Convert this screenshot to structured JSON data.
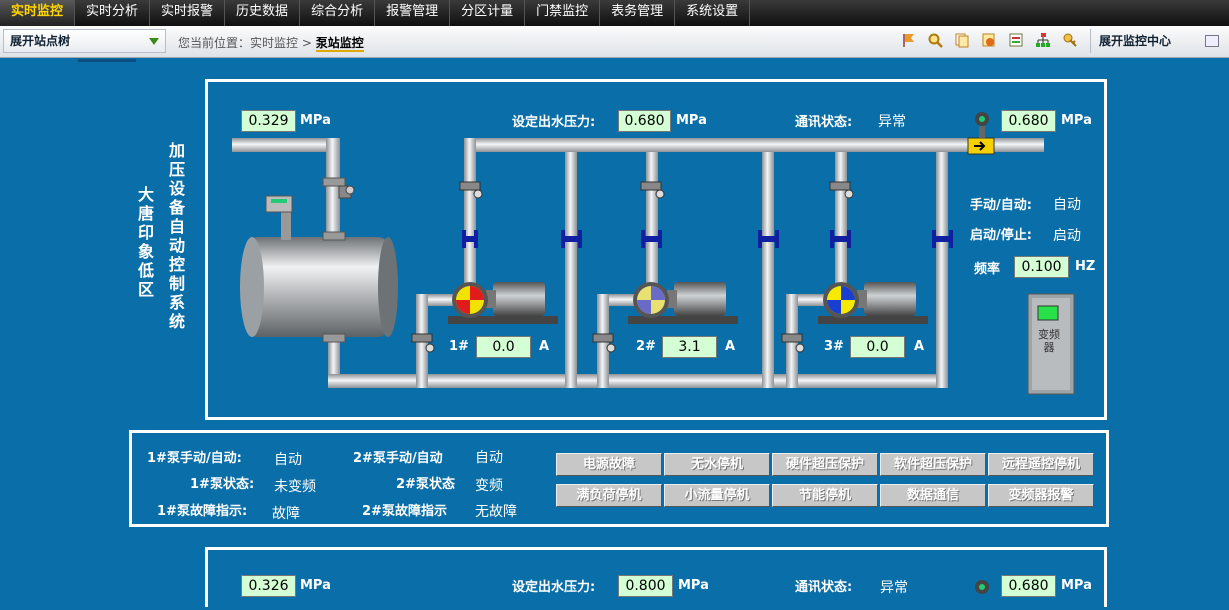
{
  "nav": {
    "items": [
      "实时监控",
      "实时分析",
      "实时报警",
      "历史数据",
      "综合分析",
      "报警管理",
      "分区计量",
      "门禁监控",
      "表务管理",
      "系统设置"
    ]
  },
  "toolbar": {
    "tree_label": "展开站点树",
    "breadcrumb_prefix": "您当前位置：实时监控 >",
    "breadcrumb_current": "泵站监控",
    "right_label": "展开监控中心",
    "icons": [
      "flag-icon",
      "search-icon",
      "copy-icon",
      "refresh-icon",
      "report-icon",
      "network-icon",
      "key-icon"
    ]
  },
  "station1": {
    "site_name": "大唐印象低区",
    "system_title": "加压设备自动控制系统",
    "inlet_pressure": "0.329",
    "unit_mpa": "MPa",
    "setpoint_label": "设定出水压力:",
    "setpoint": "0.680",
    "comm_label": "通讯状态:",
    "comm_value": "异常",
    "outlet_pressure": "0.680",
    "mode_label": "手动/自动:",
    "mode_value": "自动",
    "run_label": "启动/停止:",
    "run_value": "启动",
    "freq_label": "频率",
    "freq_value": "0.100",
    "freq_unit": "HZ",
    "vfd_label": "变频器",
    "pumps": [
      {
        "id": "1#",
        "current": "0.0",
        "unit": "A"
      },
      {
        "id": "2#",
        "current": "3.1",
        "unit": "A"
      },
      {
        "id": "3#",
        "current": "0.0",
        "unit": "A"
      }
    ]
  },
  "status": {
    "p1_mode_label": "1#泵手动/自动:",
    "p1_mode": "自动",
    "p1_state_label": "1#泵状态:",
    "p1_state": "未变频",
    "p1_fault_label": "1#泵故障指示:",
    "p1_fault": "故障",
    "p2_mode_label": "2#泵手动/自动",
    "p2_mode": "自动",
    "p2_state_label": "2#泵状态",
    "p2_state": "变频",
    "p2_fault_label": "2#泵故障指示",
    "p2_fault": "无故障",
    "alarms": [
      "电源故障",
      "无水停机",
      "硬件超压保护",
      "软件超压保护",
      "远程遥控停机",
      "满负荷停机",
      "小流量停机",
      "节能停机",
      "数据通信",
      "变频器报警"
    ]
  },
  "station2": {
    "inlet_pressure": "0.326",
    "unit_mpa": "MPa",
    "setpoint_label": "设定出水压力:",
    "setpoint": "0.800",
    "comm_label": "通讯状态:",
    "comm_value": "异常",
    "outlet_pressure": "0.680"
  },
  "colors": {
    "background": "#0a6ea8",
    "nav_active": "#ffd400",
    "value_box": "#d4ffd4",
    "pipe": "#cfd3d6"
  }
}
